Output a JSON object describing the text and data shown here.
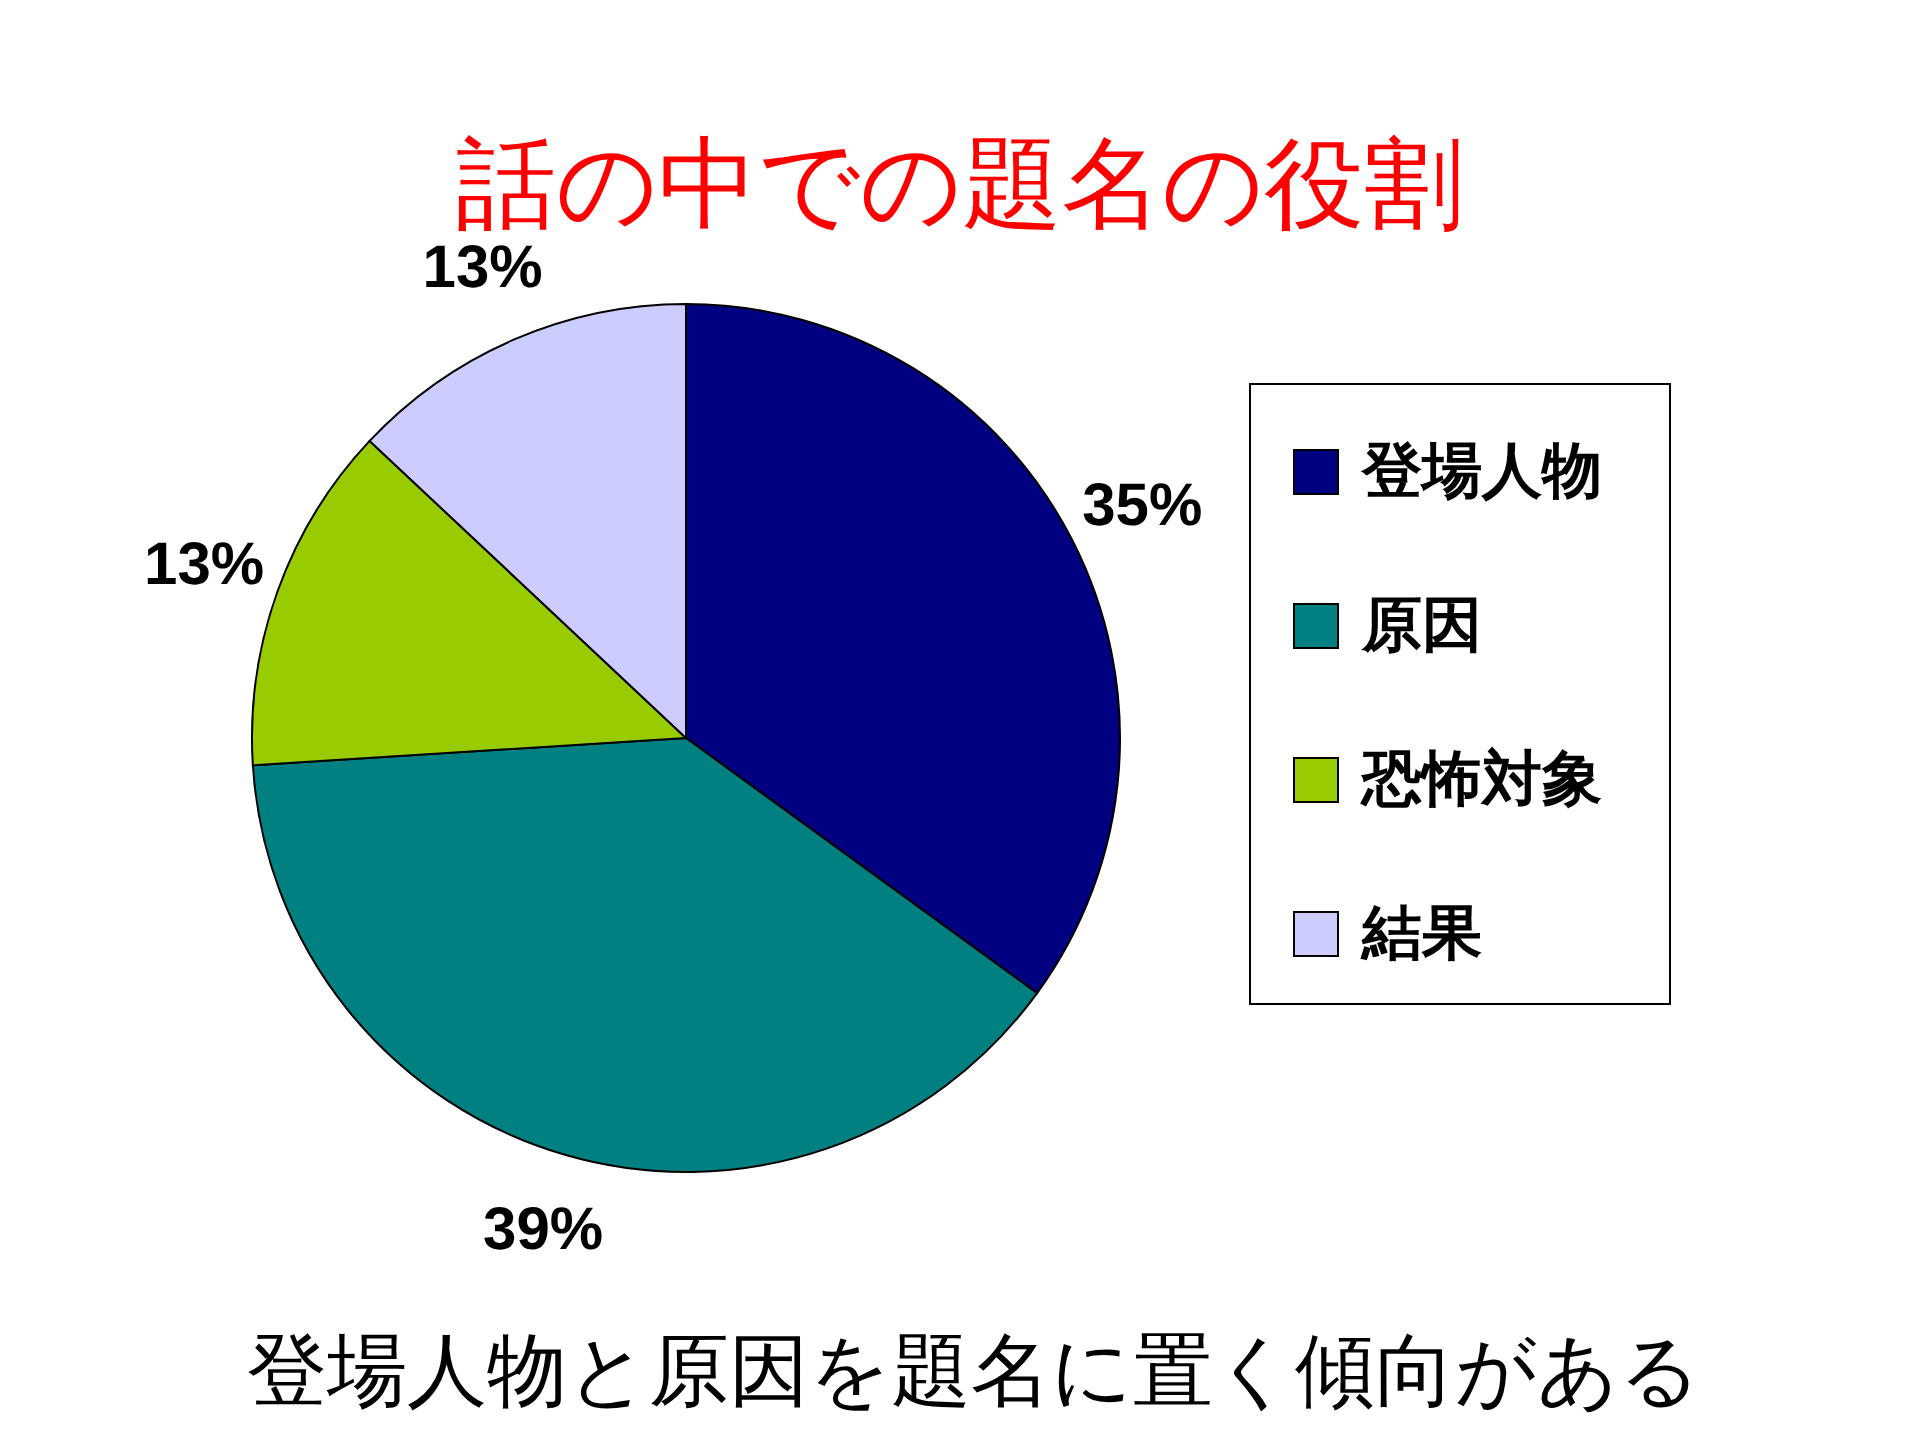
{
  "chart_data": {
    "type": "pie",
    "title": "話の中での題名の役割",
    "categories": [
      "登場人物",
      "原因",
      "恐怖対象",
      "結果"
    ],
    "values": [
      35,
      39,
      13,
      13
    ],
    "colors": [
      "#000080",
      "#008080",
      "#99cc00",
      "#ccccff"
    ],
    "value_labels": [
      "35%",
      "39%",
      "13%",
      "13%"
    ],
    "legend": "right",
    "annotations": [
      "登場人物と原因を題名に置く傾向がある"
    ]
  }
}
